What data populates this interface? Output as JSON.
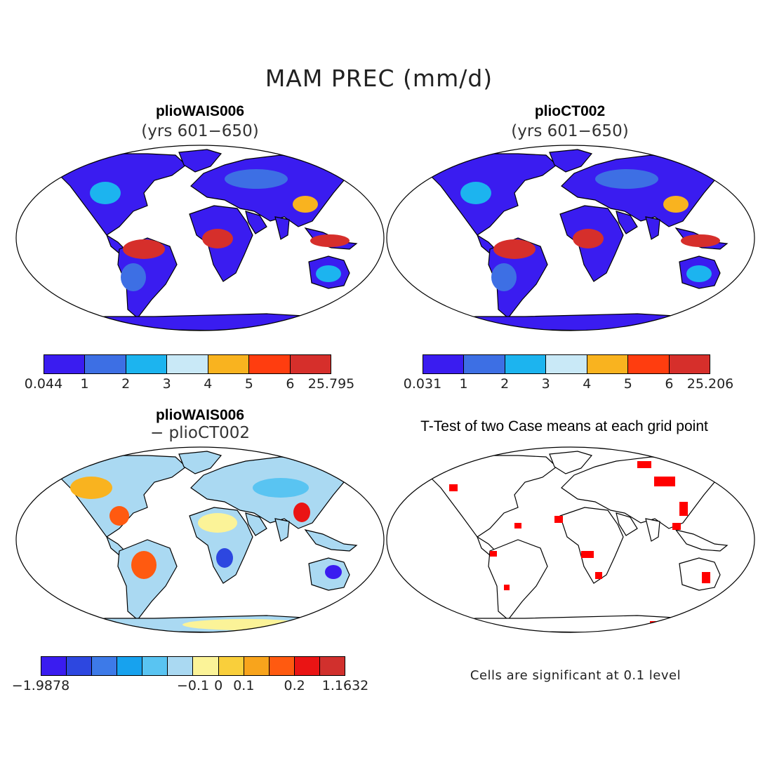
{
  "title": "MAM PREC (mm/d)",
  "panels": {
    "top_left": {
      "title": "plioWAIS006",
      "subtitle": "(yrs 601−650)"
    },
    "top_right": {
      "title": "plioCT002",
      "subtitle": "(yrs 601−650)"
    },
    "bottom_left": {
      "title": "plioWAIS006",
      "subtitle": "− plioCT002"
    },
    "bottom_right": {
      "title": "T-Test of two Case means at each grid point",
      "note": "Cells are significant at 0.1 level"
    }
  },
  "colorbars": {
    "top_left": {
      "colors": [
        "#3a1cf0",
        "#3d6fe4",
        "#1cb4ef",
        "#c9e9f7",
        "#f9b31f",
        "#ff3d0f",
        "#d62f2b"
      ],
      "ticks": [
        "0.044",
        "1",
        "2",
        "3",
        "4",
        "5",
        "6",
        "25.795"
      ]
    },
    "top_right": {
      "colors": [
        "#3a1cf0",
        "#3d6fe4",
        "#1cb4ef",
        "#c9e9f7",
        "#f9b31f",
        "#ff3d0f",
        "#d62f2b"
      ],
      "ticks": [
        "0.031",
        "1",
        "2",
        "3",
        "4",
        "5",
        "6",
        "25.206"
      ]
    },
    "bottom_left": {
      "colors": [
        "#3a1cf0",
        "#2d47e0",
        "#3d7ae8",
        "#17a2ee",
        "#59c4f2",
        "#aad9f2",
        "#fbf398",
        "#f9cf3b",
        "#f8a41c",
        "#ff5a10",
        "#ea1414",
        "#d1302d"
      ],
      "ticks": [
        "−1.9878",
        "",
        "",
        "",
        "",
        "",
        "−0.1",
        "0",
        "0.1",
        "",
        "0.2",
        "",
        "1.1632"
      ]
    },
    "bottom_right": {
      "colors": [
        "#ff0000"
      ]
    }
  },
  "icons": {
    "map_top_left": "world-map-icon",
    "map_top_right": "world-map-icon",
    "map_bottom_left": "world-map-icon",
    "map_bottom_right": "world-map-icon"
  }
}
